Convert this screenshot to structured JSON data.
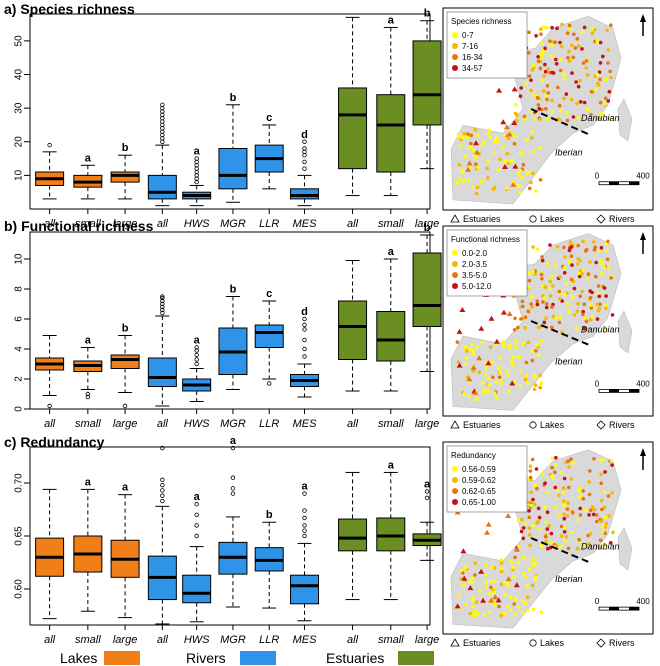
{
  "colors": {
    "lakes": "#f07f1a",
    "rivers": "#2f93e8",
    "estuaries": "#6b8e23",
    "median": "#000000"
  },
  "chart_data": [
    {
      "type": "box",
      "title": "a) Species richness",
      "ylim": [
        0,
        58
      ],
      "yticks": [
        10,
        20,
        30,
        40,
        50
      ],
      "categories": [
        "all",
        "small",
        "large",
        "all",
        "HWS",
        "MGR",
        "LLR",
        "MES",
        "all",
        "small",
        "large"
      ],
      "groups": [
        "Lakes",
        "Lakes",
        "Lakes",
        "Rivers",
        "Rivers",
        "Rivers",
        "Rivers",
        "Rivers",
        "Estuaries",
        "Estuaries",
        "Estuaries"
      ],
      "boxes": [
        {
          "min": 3,
          "q1": 7,
          "median": 9,
          "q3": 11,
          "max": 17,
          "outliers": [
            19
          ]
        },
        {
          "min": 3,
          "q1": 6.5,
          "median": 8,
          "q3": 10,
          "max": 13,
          "outliers": [],
          "letter": "a"
        },
        {
          "min": 3,
          "q1": 8,
          "median": 10,
          "q3": 11,
          "max": 16,
          "outliers": [],
          "letter": "b"
        },
        {
          "min": 1,
          "q1": 3,
          "median": 5,
          "q3": 10,
          "max": 19,
          "outliers": [
            20,
            21,
            22,
            23,
            24,
            25,
            26,
            27,
            28,
            29,
            30,
            31
          ]
        },
        {
          "min": 1,
          "q1": 3,
          "median": 4,
          "q3": 5,
          "max": 7,
          "outliers": [
            8,
            9,
            10,
            11,
            12,
            13,
            14,
            15
          ],
          "letter": "a"
        },
        {
          "min": 2,
          "q1": 6,
          "median": 10,
          "q3": 18,
          "max": 31,
          "outliers": [],
          "letter": "b"
        },
        {
          "min": 6,
          "q1": 11,
          "median": 15,
          "q3": 19,
          "max": 25,
          "outliers": [],
          "letter": "c"
        },
        {
          "min": 1,
          "q1": 3,
          "median": 4,
          "q3": 6,
          "max": 10,
          "outliers": [
            12,
            14,
            16,
            17,
            18,
            20
          ],
          "letter": "d"
        },
        {
          "min": 4,
          "q1": 12,
          "median": 28,
          "q3": 36,
          "max": 57,
          "outliers": []
        },
        {
          "min": 4,
          "q1": 11,
          "median": 25,
          "q3": 34,
          "max": 54,
          "outliers": [],
          "letter": "a"
        },
        {
          "min": 12,
          "q1": 25,
          "median": 34,
          "q3": 50,
          "max": 56,
          "outliers": [],
          "letter": "b"
        }
      ]
    },
    {
      "type": "box",
      "title": "b) Functional richness",
      "ylim": [
        0,
        11.8
      ],
      "yticks": [
        0,
        2,
        4,
        6,
        8,
        10
      ],
      "categories": [
        "all",
        "small",
        "large",
        "all",
        "HWS",
        "MGR",
        "LLR",
        "MES",
        "all",
        "small",
        "large"
      ],
      "groups": [
        "Lakes",
        "Lakes",
        "Lakes",
        "Rivers",
        "Rivers",
        "Rivers",
        "Rivers",
        "Rivers",
        "Estuaries",
        "Estuaries",
        "Estuaries"
      ],
      "boxes": [
        {
          "min": 0.9,
          "q1": 2.6,
          "median": 3.0,
          "q3": 3.4,
          "max": 4.9,
          "outliers": [
            0.2
          ]
        },
        {
          "min": 1.3,
          "q1": 2.5,
          "median": 2.9,
          "q3": 3.2,
          "max": 4.1,
          "outliers": [
            0.8,
            1.0
          ],
          "letter": "a"
        },
        {
          "min": 1.1,
          "q1": 2.7,
          "median": 3.3,
          "q3": 3.6,
          "max": 4.9,
          "outliers": [
            0.2
          ],
          "letter": "b"
        },
        {
          "min": 0.2,
          "q1": 1.5,
          "median": 2.1,
          "q3": 3.4,
          "max": 6.2,
          "outliers": [
            6.4,
            6.6,
            6.8,
            7.0,
            7.2,
            7.4,
            7.5
          ]
        },
        {
          "min": 0.5,
          "q1": 1.2,
          "median": 1.6,
          "q3": 2.0,
          "max": 2.7,
          "outliers": [
            3.0,
            3.3,
            3.6,
            3.9,
            4.1
          ],
          "letter": "a"
        },
        {
          "min": 1.3,
          "q1": 2.3,
          "median": 3.8,
          "q3": 5.4,
          "max": 7.5,
          "outliers": [],
          "letter": "b"
        },
        {
          "min": 2.0,
          "q1": 4.1,
          "median": 5.1,
          "q3": 5.6,
          "max": 7.2,
          "outliers": [
            1.7
          ],
          "letter": "c"
        },
        {
          "min": 0.8,
          "q1": 1.5,
          "median": 1.9,
          "q3": 2.3,
          "max": 3.0,
          "outliers": [
            3.5,
            4.0,
            4.6,
            5.3,
            5.6,
            6.0
          ],
          "letter": "d"
        },
        {
          "min": 1.2,
          "q1": 3.3,
          "median": 5.5,
          "q3": 7.2,
          "max": 9.9,
          "outliers": []
        },
        {
          "min": 1.2,
          "q1": 3.2,
          "median": 4.6,
          "q3": 6.5,
          "max": 10.0,
          "outliers": [],
          "letter": "a"
        },
        {
          "min": 2.5,
          "q1": 5.5,
          "median": 6.9,
          "q3": 10.4,
          "max": 11.6,
          "outliers": [],
          "letter": "b"
        }
      ]
    },
    {
      "type": "box",
      "title": "c) Redundancy",
      "ylim": [
        0.566,
        0.734
      ],
      "yticks": [
        0.6,
        0.65,
        0.7
      ],
      "ytick_labels": [
        "0.60",
        "0.65",
        "0.70"
      ],
      "categories": [
        "all",
        "small",
        "large",
        "all",
        "HWS",
        "MGR",
        "LLR",
        "MES",
        "all",
        "small",
        "large"
      ],
      "groups": [
        "Lakes",
        "Lakes",
        "Lakes",
        "Rivers",
        "Rivers",
        "Rivers",
        "Rivers",
        "Rivers",
        "Estuaries",
        "Estuaries",
        "Estuaries"
      ],
      "boxes": [
        {
          "min": 0.572,
          "q1": 0.612,
          "median": 0.63,
          "q3": 0.648,
          "max": 0.694,
          "outliers": []
        },
        {
          "min": 0.579,
          "q1": 0.616,
          "median": 0.633,
          "q3": 0.65,
          "max": 0.694,
          "outliers": [],
          "letter": "a"
        },
        {
          "min": 0.573,
          "q1": 0.611,
          "median": 0.628,
          "q3": 0.646,
          "max": 0.689,
          "outliers": [],
          "letter": "a"
        },
        {
          "min": 0.567,
          "q1": 0.59,
          "median": 0.611,
          "q3": 0.631,
          "max": 0.678,
          "outliers": [
            0.683,
            0.688,
            0.693,
            0.698,
            0.703,
            0.733
          ]
        },
        {
          "min": 0.569,
          "q1": 0.587,
          "median": 0.596,
          "q3": 0.613,
          "max": 0.64,
          "outliers": [
            0.65,
            0.66,
            0.67,
            0.68
          ],
          "letter": "a"
        },
        {
          "min": 0.583,
          "q1": 0.614,
          "median": 0.63,
          "q3": 0.644,
          "max": 0.668,
          "outliers": [
            0.69,
            0.695,
            0.705,
            0.733
          ],
          "letter": "a"
        },
        {
          "min": 0.582,
          "q1": 0.617,
          "median": 0.627,
          "q3": 0.639,
          "max": 0.663,
          "outliers": [],
          "letter": "b"
        },
        {
          "min": 0.57,
          "q1": 0.586,
          "median": 0.603,
          "q3": 0.613,
          "max": 0.643,
          "outliers": [
            0.65,
            0.655,
            0.66,
            0.667,
            0.674,
            0.69
          ],
          "letter": "a"
        },
        {
          "min": 0.59,
          "q1": 0.636,
          "median": 0.648,
          "q3": 0.666,
          "max": 0.71,
          "outliers": []
        },
        {
          "min": 0.59,
          "q1": 0.636,
          "median": 0.65,
          "q3": 0.667,
          "max": 0.71,
          "outliers": [],
          "letter": "a"
        },
        {
          "min": 0.627,
          "q1": 0.641,
          "median": 0.646,
          "q3": 0.652,
          "max": 0.663,
          "outliers": [
            0.686,
            0.692
          ],
          "letter": "a"
        }
      ]
    }
  ],
  "maps": [
    {
      "title": "Species richness",
      "classes": [
        "0-7",
        "7-16",
        "16-34",
        "34-57"
      ]
    },
    {
      "title": "Functional richness",
      "classes": [
        "0.0-2.0",
        "2.0-3.5",
        "3.5-5.0",
        "5.0-12.0"
      ]
    },
    {
      "title": "Redundancy",
      "classes": [
        "0.56-0.59",
        "0.59-0.62",
        "0.62-0.65",
        "0.65-1.00"
      ]
    }
  ],
  "map_class_colors": [
    "#ffff00",
    "#f5b800",
    "#e87410",
    "#c8100f"
  ],
  "map_labels": {
    "danubian": "Danubian",
    "iberian": "Iberian",
    "scale_zero": "0",
    "scale_max": "400"
  },
  "map_symbols": [
    "Estuaries",
    "Lakes",
    "Rivers"
  ],
  "legend": [
    "Lakes",
    "Rivers",
    "Estuaries"
  ]
}
